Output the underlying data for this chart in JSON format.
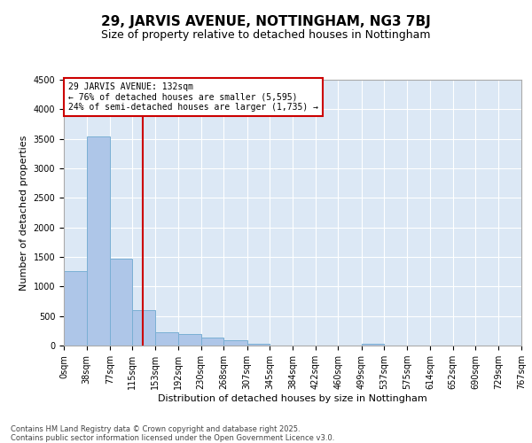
{
  "title_line1": "29, JARVIS AVENUE, NOTTINGHAM, NG3 7BJ",
  "title_line2": "Size of property relative to detached houses in Nottingham",
  "xlabel": "Distribution of detached houses by size in Nottingham",
  "ylabel": "Number of detached properties",
  "annotation_line1": "29 JARVIS AVENUE: 132sqm",
  "annotation_line2": "← 76% of detached houses are smaller (5,595)",
  "annotation_line3": "24% of semi-detached houses are larger (1,735) →",
  "property_size": 132,
  "bin_edges": [
    0,
    38,
    77,
    115,
    153,
    192,
    230,
    268,
    307,
    345,
    384,
    422,
    460,
    499,
    537,
    575,
    614,
    652,
    690,
    729,
    767
  ],
  "bar_heights": [
    1260,
    3540,
    1470,
    600,
    230,
    200,
    140,
    90,
    30,
    0,
    0,
    0,
    0,
    30,
    0,
    0,
    0,
    0,
    0,
    0
  ],
  "bar_color": "#aec6e8",
  "bar_edge_color": "#7aafd4",
  "line_color": "#cc0000",
  "annotation_box_edge_color": "#cc0000",
  "background_color": "#dce8f5",
  "fig_background_color": "#ffffff",
  "grid_color": "#ffffff",
  "ylim": [
    0,
    4500
  ],
  "yticks": [
    0,
    500,
    1000,
    1500,
    2000,
    2500,
    3000,
    3500,
    4000,
    4500
  ],
  "footer_line1": "Contains HM Land Registry data © Crown copyright and database right 2025.",
  "footer_line2": "Contains public sector information licensed under the Open Government Licence v3.0.",
  "title_fontsize": 11,
  "subtitle_fontsize": 9,
  "ylabel_fontsize": 8,
  "xlabel_fontsize": 8,
  "tick_fontsize": 7,
  "annotation_fontsize": 7,
  "footer_fontsize": 6
}
